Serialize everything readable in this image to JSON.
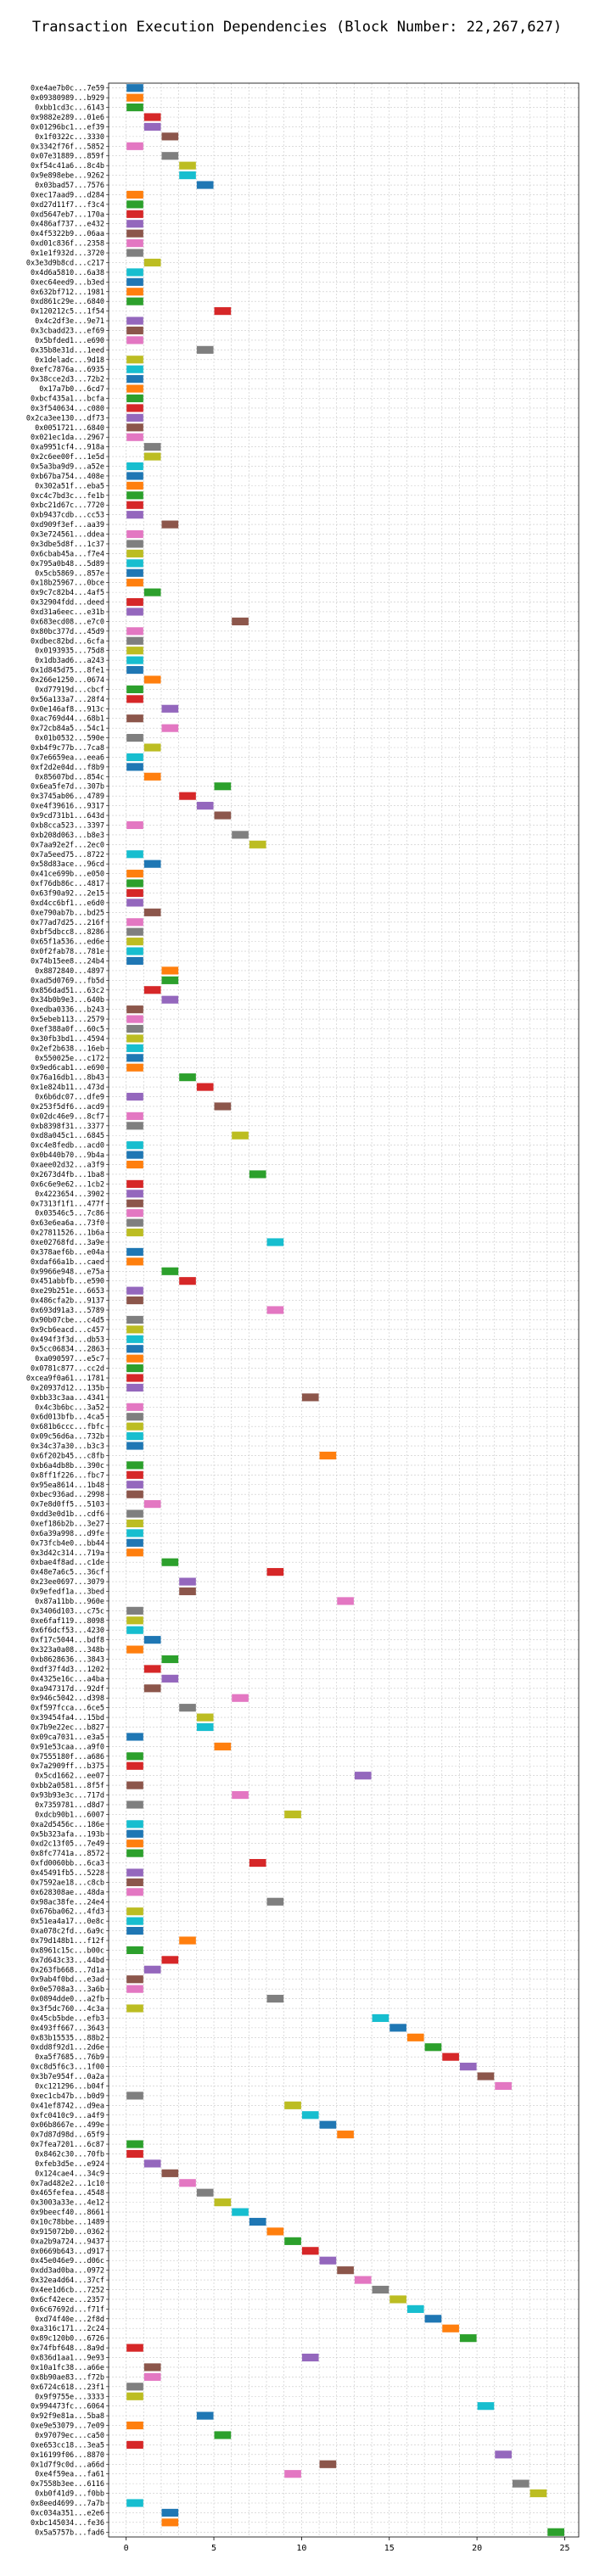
{
  "chart_data": {
    "type": "bar",
    "orientation": "horizontal-gantt",
    "title": "Transaction Execution Dependencies (Block Number: 22,267,627)",
    "xlabel": "",
    "ylabel": "",
    "xlim": [
      -1,
      25.8
    ],
    "xticks": [
      0,
      5,
      10,
      15,
      20,
      25
    ],
    "grid": true,
    "legend": "none",
    "palette": [
      "#1f77b4",
      "#ff7f0e",
      "#2ca02c",
      "#d62728",
      "#9467bd",
      "#8c564b",
      "#e377c2",
      "#7f7f7f",
      "#bcbd22",
      "#17becf"
    ],
    "rows": [
      [
        "0xe4ae7b0c...7e59",
        0
      ],
      [
        "0x09380989...b929",
        0
      ],
      [
        "0xbb1cd3c...6143",
        0
      ],
      [
        "0x9882e289...01e6",
        1
      ],
      [
        "0x01296bc1...ef39",
        1
      ],
      [
        "0x1f0322c...3330",
        2
      ],
      [
        "0x3342f76f...5852",
        0
      ],
      [
        "0x07e31889...859f",
        2
      ],
      [
        "0xf54c41a6...8c4b",
        3
      ],
      [
        "0x9e898ebe...9262",
        3
      ],
      [
        "0x03bad57...7576",
        4
      ],
      [
        "0xec17aad9...d284",
        0
      ],
      [
        "0xd27d11f7...f3c4",
        0
      ],
      [
        "0xd5647eb7...170a",
        0
      ],
      [
        "0x486af737...e432",
        0
      ],
      [
        "0x4f5322b9...06aa",
        0
      ],
      [
        "0xd01c836f...2358",
        0
      ],
      [
        "0x1e1f932d...3720",
        0
      ],
      [
        "0x3e3d9b8cd...c217",
        1
      ],
      [
        "0x4d6a5810...6a38",
        0
      ],
      [
        "0xec64eed9...b3ed",
        0
      ],
      [
        "0x632bf712...1981",
        0
      ],
      [
        "0xd861c29e...6840",
        0
      ],
      [
        "0x120212c5...1f54",
        5
      ],
      [
        "0x4c2df3e...9e71",
        0
      ],
      [
        "0x3cbadd23...ef69",
        0
      ],
      [
        "0x5bfded1...e690",
        0
      ],
      [
        "0x35b8e31d...1eed",
        4
      ],
      [
        "0x1deladc...9d18",
        0
      ],
      [
        "0xefc7876a...6935",
        0
      ],
      [
        "0x38cce2d3...72b2",
        0
      ],
      [
        "0x17a7b0...6cd7",
        0
      ],
      [
        "0xbcf435a1...bcfa",
        0
      ],
      [
        "0x3f540634...c080",
        0
      ],
      [
        "0x2ca3ee130...df73",
        0
      ],
      [
        "0x0051721...6840",
        0
      ],
      [
        "0x021ec1da...2967",
        0
      ],
      [
        "0xa9951cf4...918a",
        1
      ],
      [
        "0x2c6ee00f...1e5d",
        1
      ],
      [
        "0x5a3ba9d9...a52e",
        0
      ],
      [
        "0xb67ba754...408e",
        0
      ],
      [
        "0x302a51f...eba5",
        0
      ],
      [
        "0xc4c7bd3c...fe1b",
        0
      ],
      [
        "0xbc21d67c...7720",
        0
      ],
      [
        "0xb9437cdb...cc53",
        0
      ],
      [
        "0xd909f3ef...aa39",
        2
      ],
      [
        "0x3e724561...ddea",
        0
      ],
      [
        "0x3dbe5d8f...1c37",
        0
      ],
      [
        "0x6cbab45a...f7e4",
        0
      ],
      [
        "0x795a0b48...5d89",
        0
      ],
      [
        "0x5cb5869...857e",
        0
      ],
      [
        "0x18b25967...0bce",
        0
      ],
      [
        "0x9c7c82b4...4af5",
        1
      ],
      [
        "0x32904fdd...deed",
        0
      ],
      [
        "0xd31a6eec...e31b",
        0
      ],
      [
        "0x683ecd08...e7c0",
        6
      ],
      [
        "0x80bc377d...45d9",
        0
      ],
      [
        "0xdbec82bd...6cfa",
        0
      ],
      [
        "0x0193935...75d8",
        0
      ],
      [
        "0x1db3ad6...a243",
        0
      ],
      [
        "0x1d845d75...8fe1",
        0
      ],
      [
        "0x266e1250...0674",
        1
      ],
      [
        "0xd77919d...cbcf",
        0
      ],
      [
        "0x56a133a7...28f4",
        0
      ],
      [
        "0x0e146af8...913c",
        2
      ],
      [
        "0xac769d44...68b1",
        0
      ],
      [
        "0x72cb84a5...54c1",
        2
      ],
      [
        "0x01b0532...590e",
        0
      ],
      [
        "0xb4f9c77b...7ca8",
        1
      ],
      [
        "0x7e6659ea...eea6",
        0
      ],
      [
        "0xf2d2e04d...f8b9",
        0
      ],
      [
        "0x85607bd...854c",
        1
      ],
      [
        "0x6ea5fe7d...307b",
        5
      ],
      [
        "0x3745ab06...4789",
        3
      ],
      [
        "0xe4f39616...9317",
        4
      ],
      [
        "0x9cd731b1...643d",
        5
      ],
      [
        "0xb8cca523...3397",
        0
      ],
      [
        "0xb208d063...b8e3",
        6
      ],
      [
        "0x7aa92e2f...2ec0",
        7
      ],
      [
        "0x7a5eed75...8722",
        0
      ],
      [
        "0x58d83ace...96cd",
        1
      ],
      [
        "0x41ce699b...e050",
        0
      ],
      [
        "0xf76db86c...4817",
        0
      ],
      [
        "0x63f90a92...2e15",
        0
      ],
      [
        "0xd4cc6bf1...e6d0",
        0
      ],
      [
        "0xe790ab7b...bd25",
        1
      ],
      [
        "0x77ad7d25...216f",
        0
      ],
      [
        "0xbf5dbcc8...8286",
        0
      ],
      [
        "0x65f1a536...ed6e",
        0
      ],
      [
        "0x0f2fab78...781e",
        0
      ],
      [
        "0x74b15ee8...24b4",
        0
      ],
      [
        "0x8872840...4897",
        2
      ],
      [
        "0xad5d0769...fb5d",
        2
      ],
      [
        "0x856dad51...63c2",
        1
      ],
      [
        "0x34b0b9e3...640b",
        2
      ],
      [
        "0xedba0336...b243",
        0
      ],
      [
        "0x5ebeb113...2579",
        0
      ],
      [
        "0xef388a0f...60c5",
        0
      ],
      [
        "0x30fb3bd1...4594",
        0
      ],
      [
        "0x2ef2b638...16eb",
        0
      ],
      [
        "0x550025e...c172",
        0
      ],
      [
        "0x9ed6cab1...e690",
        0
      ],
      [
        "0x76a16db1...8b43",
        3
      ],
      [
        "0x1e824b11...473d",
        4
      ],
      [
        "0x6b6dc07...dfe9",
        0
      ],
      [
        "0x253f5df6...acd9",
        5
      ],
      [
        "0x02dc46e9...8cf7",
        0
      ],
      [
        "0xb8398f31...3377",
        0
      ],
      [
        "0xd8a045c1...6845",
        6
      ],
      [
        "0xc4e8fedb...acd0",
        0
      ],
      [
        "0x0b440b70...9b4a",
        0
      ],
      [
        "0xaee02d32...a3f9",
        0
      ],
      [
        "0x2673d4fb...1ba8",
        7
      ],
      [
        "0x6c6e9e62...1cb2",
        0
      ],
      [
        "0x4223654...3902",
        0
      ],
      [
        "0x7313f1f1...477f",
        0
      ],
      [
        "0x03546c5...7c86",
        0
      ],
      [
        "0x63e6ea6a...73f0",
        0
      ],
      [
        "0x27811526...1b6a",
        0
      ],
      [
        "0xe02768fd...3a9e",
        8
      ],
      [
        "0x378aef6b...e04a",
        0
      ],
      [
        "0xdaf66a1b...caed",
        0
      ],
      [
        "0x9966e948...e75a",
        2
      ],
      [
        "0x451abbfb...e590",
        3
      ],
      [
        "0xe29b251e...6653",
        0
      ],
      [
        "0x486cfa2b...9137",
        0
      ],
      [
        "0x693d91a3...5789",
        8
      ],
      [
        "0x90b07cbe...c4d5",
        0
      ],
      [
        "0x9cb6eacd...c457",
        0
      ],
      [
        "0x494f3f3d...db53",
        0
      ],
      [
        "0x5cc06834...2863",
        0
      ],
      [
        "0xa090597...e5c7",
        0
      ],
      [
        "0x0781c877...cc2d",
        0
      ],
      [
        "0xcea9f0a61...1781",
        0
      ],
      [
        "0x20937d12...135b",
        0
      ],
      [
        "0xbb33c3aa...4341",
        10
      ],
      [
        "0x4c3b6bc...3a52",
        0
      ],
      [
        "0x6d013bfb...4ca5",
        0
      ],
      [
        "0x681b6ccc...fbfc",
        0
      ],
      [
        "0x09c56d6a...732b",
        0
      ],
      [
        "0x34c37a30...b3c3",
        0
      ],
      [
        "0x6f202b45...c8fb",
        11
      ],
      [
        "0xb6a4db8b...390c",
        0
      ],
      [
        "0x8ff1f226...fbc7",
        0
      ],
      [
        "0x95ea8614...1b48",
        0
      ],
      [
        "0xbec936ad...2998",
        0
      ],
      [
        "0x7e8d0ff5...5103",
        1
      ],
      [
        "0xdd3e0d1b...cdf6",
        0
      ],
      [
        "0xef186b2b...3e27",
        0
      ],
      [
        "0x6a39a998...d9fe",
        0
      ],
      [
        "0x73fcb4e0...bb44",
        0
      ],
      [
        "0x3d42c314...719a",
        0
      ],
      [
        "0xbae4f8ad...c1de",
        2
      ],
      [
        "0x48e7a6c5...36cf",
        8
      ],
      [
        "0x23ee0697...3079",
        3
      ],
      [
        "0x9efedf1a...3bed",
        3
      ],
      [
        "0x87a11bb...960e",
        12
      ],
      [
        "0x3406d103...c75c",
        0
      ],
      [
        "0xe6faf119...8098",
        0
      ],
      [
        "0x6f6dcf53...4230",
        0
      ],
      [
        "0xf17c5044...bdf8",
        1
      ],
      [
        "0x323a0a08...348b",
        0
      ],
      [
        "0xb8628636...3843",
        2
      ],
      [
        "0xdf37f4d3...1202",
        1
      ],
      [
        "0x4325e16c...a4ba",
        2
      ],
      [
        "0xa947317d...92df",
        1
      ],
      [
        "0x946c5042...d398",
        6
      ],
      [
        "0xf597fcca...6ce5",
        3
      ],
      [
        "0x39454fa4...15bd",
        4
      ],
      [
        "0x7b9e22ec...b827",
        4
      ],
      [
        "0x09ca7031...e3a5",
        0
      ],
      [
        "0x91e53caa...a9f0",
        5
      ],
      [
        "0x7555180f...a686",
        0
      ],
      [
        "0x7a2909ff...b375",
        0
      ],
      [
        "0x5cd1662...ee07",
        13
      ],
      [
        "0xbb2a0581...8f5f",
        0
      ],
      [
        "0x93b93e3c...717d",
        6
      ],
      [
        "0x7359781...d8d7",
        0
      ],
      [
        "0xdcb90b1...6007",
        9
      ],
      [
        "0xa2d5456c...186e",
        0
      ],
      [
        "0x5b323afa...193b",
        0
      ],
      [
        "0xd2c13f05...7e49",
        0
      ],
      [
        "0x8fc7741a...8572",
        0
      ],
      [
        "0xfd0060bb...6ca3",
        7
      ],
      [
        "0x45491fb5...5228",
        0
      ],
      [
        "0x7592ae18...c8cb",
        0
      ],
      [
        "0x628308ae...48da",
        0
      ],
      [
        "0x98ac38fe...24e4",
        8
      ],
      [
        "0x676ba062...4fd3",
        0
      ],
      [
        "0x51ea4a17...0e8c",
        0
      ],
      [
        "0xa078c2fd...6a9c",
        0
      ],
      [
        "0x79d148b1...f12f",
        3
      ],
      [
        "0x8961c15c...b00c",
        0
      ],
      [
        "0x7d643c33...44bd",
        2
      ],
      [
        "0x263fb668...7d1a",
        1
      ],
      [
        "0x9ab4f0bd...e3ad",
        0
      ],
      [
        "0x0e5708a3...3a6b",
        0
      ],
      [
        "0x0894dde0...a2fb",
        8
      ],
      [
        "0x3f5dc760...4c3a",
        0
      ],
      [
        "0x45cb5bde...efb3",
        14
      ],
      [
        "0x493ff667...3643",
        15
      ],
      [
        "0x83b15535...88b2",
        16
      ],
      [
        "0xdd8f92d1...2d6e",
        17
      ],
      [
        "0xa5f7685...76b9",
        18
      ],
      [
        "0xc8d5f6c3...1f00",
        19
      ],
      [
        "0x3b7e954f...0a2a",
        20
      ],
      [
        "0xc121296...b04f",
        21
      ],
      [
        "0xec1cb47b...b0d9",
        0
      ],
      [
        "0x41ef8742...d9ea",
        9
      ],
      [
        "0xfc0410c9...a4f9",
        10
      ],
      [
        "0x06b8667e...499e",
        11
      ],
      [
        "0x7d87d98d...65f9",
        12
      ],
      [
        "0x7fea7201...6c87",
        0
      ],
      [
        "0x8462c30...70fb",
        0
      ],
      [
        "0xfeb3d5e...e924",
        1
      ],
      [
        "0x124cae4...34c9",
        2
      ],
      [
        "0x7ad482e2...1c10",
        3
      ],
      [
        "0x465fefea...4548",
        4
      ],
      [
        "0x3003a33e...4e12",
        5
      ],
      [
        "0x9beecf40...8661",
        6
      ],
      [
        "0x10c78bbe...1489",
        7
      ],
      [
        "0x915072b0...0362",
        8
      ],
      [
        "0xa2b9a724...9437",
        9
      ],
      [
        "0x0669b643...d917",
        10
      ],
      [
        "0x45e046e9...d06c",
        11
      ],
      [
        "0xdd3ad0ba...0972",
        12
      ],
      [
        "0x32ea4d64...37cf",
        13
      ],
      [
        "0x4ee1d6cb...7252",
        14
      ],
      [
        "0x6cf42ece...2357",
        15
      ],
      [
        "0x6c67692d...f71f",
        16
      ],
      [
        "0xd74f40e...2f8d",
        17
      ],
      [
        "0xa316c171...2c24",
        18
      ],
      [
        "0x89c120b0...6726",
        19
      ],
      [
        "0x74fbf648...8a9d",
        0
      ],
      [
        "0x836d1aa1...9e93",
        10
      ],
      [
        "0x10a1fc38...a66e",
        1
      ],
      [
        "0x8b90ae83...f72b",
        1
      ],
      [
        "0x6724c618...23f1",
        0
      ],
      [
        "0x9f9755e...3333",
        0
      ],
      [
        "0x994473fc...6064",
        20
      ],
      [
        "0x92f9e81a...5ba8",
        4
      ],
      [
        "0xe9e53079...7e09",
        0
      ],
      [
        "0x97079ec...ca50",
        5
      ],
      [
        "0xe653cc18...3ea5",
        0
      ],
      [
        "0x16199f06...8870",
        21
      ],
      [
        "0x1d7f9c0d...a66d",
        11
      ],
      [
        "0xe4f59ea...fa61",
        9
      ],
      [
        "0x7558b3ee...6116",
        22
      ],
      [
        "0xb0f41d9...f0bb",
        23
      ],
      [
        "0x8eed4699...7a7b",
        0
      ],
      [
        "0xc034a351...e2e6",
        2
      ],
      [
        "0xbc145034...fe36",
        2
      ],
      [
        "0x5a5757b...fad6",
        24
      ]
    ]
  }
}
